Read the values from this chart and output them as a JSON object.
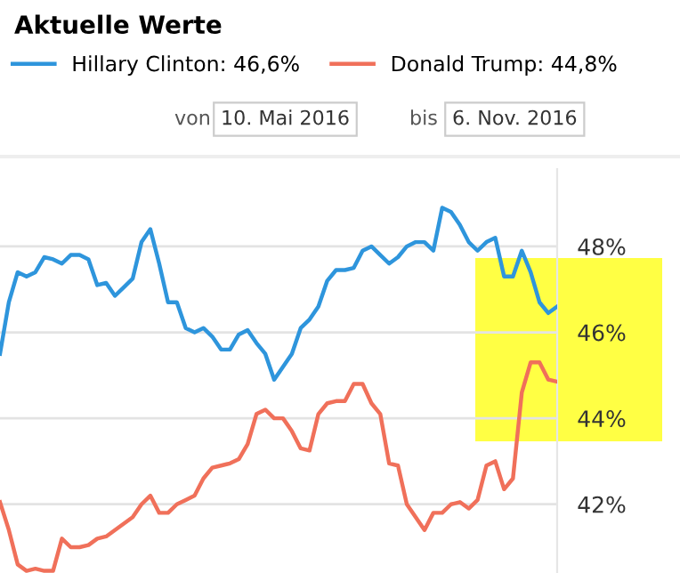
{
  "chart_data": {
    "type": "line",
    "title": "Aktuelle Werte",
    "annotations": [
      "von",
      "10. Mai 2016",
      "bis",
      "6. Nov. 2016"
    ],
    "categories": [
      null,
      null,
      null,
      null,
      null,
      null,
      null,
      null,
      null,
      null,
      null,
      null,
      null,
      null,
      null,
      null,
      null,
      null,
      null,
      null,
      null,
      null,
      null,
      null,
      null,
      null,
      null,
      null,
      null,
      null,
      null,
      null,
      null,
      null,
      null,
      null,
      null,
      null,
      null,
      null,
      null,
      null,
      null,
      null,
      null,
      null,
      null,
      null,
      null,
      null,
      null,
      null,
      null,
      null,
      null,
      null,
      null,
      null,
      null,
      null,
      null,
      null,
      null,
      null
    ],
    "series": [
      {
        "name": "Hillary Clinton: 46,6%",
        "color": "#2e95dc",
        "values": [
          45.5,
          46.7,
          47.4,
          47.3,
          47.4,
          47.75,
          47.7,
          47.6,
          47.8,
          47.8,
          47.7,
          47.1,
          47.15,
          46.85,
          47.05,
          47.25,
          48.1,
          48.4,
          47.6,
          46.7,
          46.7,
          46.1,
          46.0,
          46.1,
          45.9,
          45.6,
          45.6,
          45.95,
          46.05,
          45.75,
          45.5,
          44.9,
          45.2,
          45.5,
          46.1,
          46.3,
          46.6,
          47.2,
          47.45,
          47.45,
          47.5,
          47.9,
          48.0,
          47.8,
          47.6,
          47.75,
          48.0,
          48.1,
          48.1,
          47.9,
          48.9,
          48.8,
          48.5,
          48.1,
          47.9,
          48.1,
          48.2,
          47.3,
          47.3,
          47.9,
          47.4,
          46.7,
          46.45,
          46.6
        ]
      },
      {
        "name": "Donald Trump: 44,8%",
        "color": "#f0705a",
        "values": [
          42.05,
          41.4,
          40.6,
          40.45,
          40.5,
          40.45,
          40.45,
          41.2,
          41.0,
          41.0,
          41.05,
          41.2,
          41.25,
          41.4,
          41.55,
          41.7,
          42.0,
          42.2,
          41.8,
          41.8,
          42.0,
          42.1,
          42.2,
          42.6,
          42.85,
          42.9,
          42.95,
          43.05,
          43.4,
          44.1,
          44.2,
          44.0,
          44.0,
          43.7,
          43.3,
          43.25,
          44.1,
          44.35,
          44.4,
          44.4,
          44.8,
          44.8,
          44.35,
          44.1,
          42.95,
          42.9,
          42.0,
          41.7,
          41.4,
          41.8,
          41.8,
          42.0,
          42.05,
          41.9,
          42.1,
          42.9,
          43.0,
          42.35,
          42.6,
          44.6,
          45.3,
          45.3,
          44.9,
          44.85
        ]
      }
    ],
    "ylim": [
      40.4,
      49.8
    ],
    "yticks": [
      {
        "value": 42,
        "label": "42%"
      },
      {
        "value": 44,
        "label": "44%"
      },
      {
        "value": 46,
        "label": "46%"
      },
      {
        "value": 48,
        "label": "48%"
      }
    ],
    "grid": "y",
    "legend": "top",
    "tick_labels": "y",
    "marker": "none",
    "line_style": "solid"
  }
}
